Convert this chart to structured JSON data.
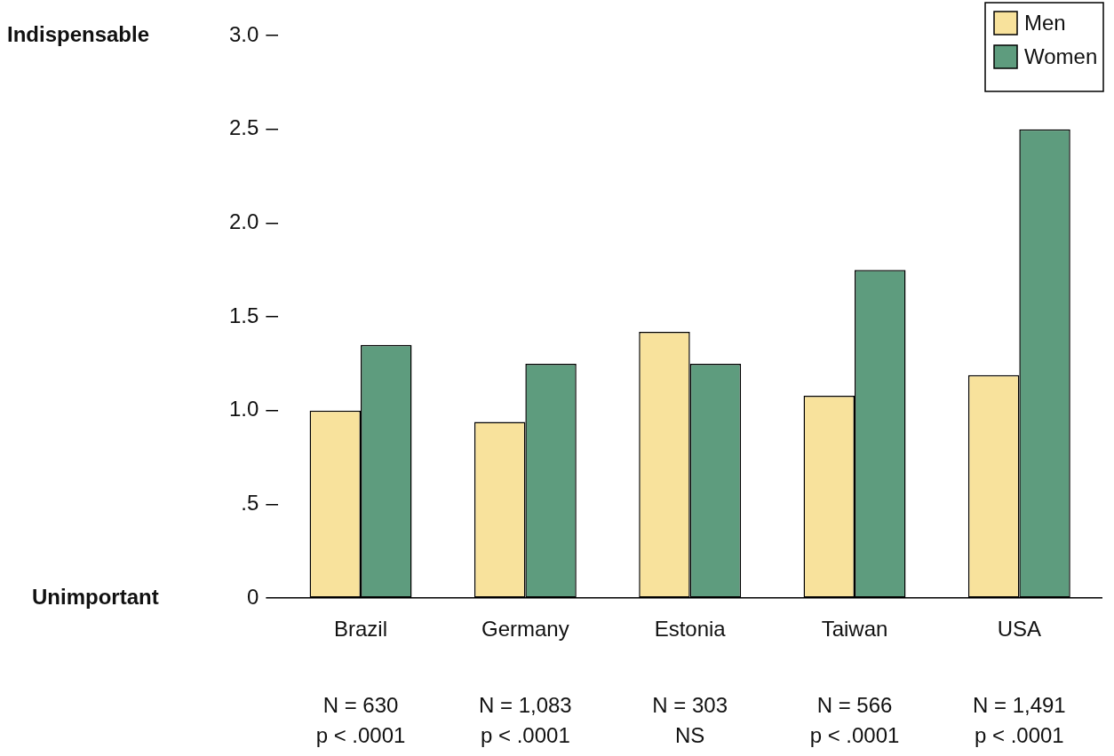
{
  "chart_data": {
    "type": "bar",
    "categories": [
      "Brazil",
      "Germany",
      "Estonia",
      "Taiwan",
      "USA"
    ],
    "series": [
      {
        "name": "Men",
        "color": "#f8e29c",
        "values": [
          1.0,
          0.94,
          1.42,
          1.08,
          1.19
        ]
      },
      {
        "name": "Women",
        "color": "#5e9c7e",
        "values": [
          1.35,
          1.25,
          1.25,
          1.75,
          2.5
        ]
      }
    ],
    "ylim": [
      0,
      3
    ],
    "yticks": [
      0,
      {
        "value": 0.5,
        "label": ".5"
      },
      {
        "value": 1,
        "label": "1.0"
      },
      {
        "value": 1.5,
        "label": "1.5"
      },
      {
        "value": 2,
        "label": "2.0"
      },
      {
        "value": 2.5,
        "label": "2.5"
      },
      {
        "value": 3,
        "label": "3.0"
      }
    ],
    "annotations": [
      "Indispensable",
      "Unimportant",
      "N = 630",
      "p < .0001",
      "N = 1,083",
      "p < .0001",
      "N = 303",
      "NS",
      "N = 566",
      "p < .0001",
      "N = 1,491",
      "p < .0001"
    ],
    "legend": "top right",
    "grid": false
  }
}
